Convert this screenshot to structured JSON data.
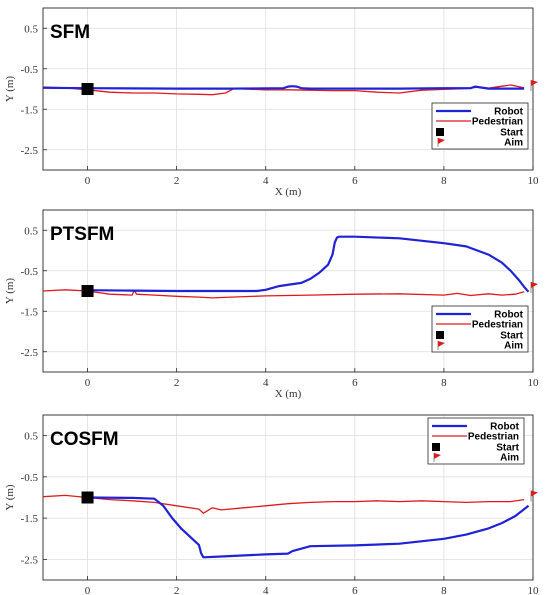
{
  "chart_data": [
    {
      "type": "line",
      "title": "SFM",
      "xlabel": "X (m)",
      "ylabel": "Y (m)",
      "xlim": [
        -1,
        10
      ],
      "ylim": [
        -3,
        1
      ],
      "xticks": [
        0,
        2,
        4,
        6,
        8,
        10
      ],
      "yticks": [
        0.5,
        -0.5,
        -1.5,
        -2.5
      ],
      "grid": true,
      "legend_position": "bottom-right",
      "legend": [
        "Robot",
        "Pedestrian",
        "Start",
        "Aim"
      ],
      "series": [
        {
          "name": "Robot",
          "color": "#1f22d6",
          "x": [
            -1,
            0,
            2,
            3.2,
            4.4,
            4.5,
            4.6,
            4.7,
            4.8,
            5,
            6,
            7,
            8,
            8.6,
            8.7,
            9,
            9.8
          ],
          "y": [
            -0.97,
            -0.98,
            -0.99,
            -0.99,
            -0.98,
            -0.94,
            -0.93,
            -0.94,
            -0.98,
            -0.99,
            -0.99,
            -0.99,
            -0.98,
            -0.98,
            -0.94,
            -0.99,
            -0.99
          ]
        },
        {
          "name": "Pedestrian",
          "color": "#e0191c",
          "x": [
            -1,
            -0.5,
            0,
            0.5,
            1,
            1.5,
            2,
            2.5,
            2.8,
            3.1,
            3.3,
            3.5,
            4,
            4.5,
            5,
            5.5,
            6,
            6.5,
            7,
            7.5,
            8,
            8.5,
            8.8,
            9,
            9.3,
            9.5,
            9.8
          ],
          "y": [
            -0.95,
            -0.97,
            -1.02,
            -1.08,
            -1.1,
            -1.1,
            -1.12,
            -1.13,
            -1.14,
            -1.1,
            -0.98,
            -1,
            -1.02,
            -1.02,
            -1.03,
            -1.04,
            -1.04,
            -1.08,
            -1.1,
            -1.03,
            -1.01,
            -0.99,
            -0.95,
            -0.98,
            -0.93,
            -0.9,
            -0.97
          ]
        }
      ],
      "start": {
        "x": 0,
        "y": -1
      },
      "aim": {
        "x": 10,
        "y": -0.9
      }
    },
    {
      "type": "line",
      "title": "PTSFM",
      "xlabel": "X (m)",
      "ylabel": "Y (m)",
      "xlim": [
        -1,
        10
      ],
      "ylim": [
        -3,
        1
      ],
      "xticks": [
        0,
        2,
        4,
        6,
        8,
        10
      ],
      "yticks": [
        0.5,
        -0.5,
        -1.5,
        -2.5
      ],
      "grid": true,
      "legend_position": "bottom-right",
      "legend": [
        "Robot",
        "Pedestrian",
        "Start",
        "Aim"
      ],
      "series": [
        {
          "name": "Robot",
          "color": "#1f22d6",
          "x": [
            0,
            1,
            2,
            3,
            3.8,
            4,
            4.3,
            4.6,
            4.8,
            5,
            5.2,
            5.4,
            5.5,
            5.55,
            5.6,
            5.65,
            6,
            7,
            8,
            8.5,
            9,
            9.3,
            9.5,
            9.7,
            9.8,
            9.9
          ],
          "y": [
            -0.98,
            -0.99,
            -1.0,
            -1.0,
            -1.0,
            -0.97,
            -0.88,
            -0.83,
            -0.8,
            -0.7,
            -0.55,
            -0.35,
            -0.1,
            0.2,
            0.32,
            0.34,
            0.34,
            0.3,
            0.18,
            0.1,
            -0.1,
            -0.3,
            -0.5,
            -0.75,
            -0.9,
            -1.02
          ]
        },
        {
          "name": "Pedestrian",
          "color": "#e0191c",
          "x": [
            -1,
            -0.5,
            0,
            0.5,
            1,
            1.05,
            1.1,
            1.5,
            2,
            2.5,
            2.8,
            3,
            4,
            5,
            6,
            7,
            8,
            8.3,
            8.6,
            9,
            9.3,
            9.6,
            9.8
          ],
          "y": [
            -1.0,
            -0.97,
            -1.0,
            -1.08,
            -1.1,
            -0.98,
            -1.08,
            -1.1,
            -1.13,
            -1.15,
            -1.17,
            -1.16,
            -1.12,
            -1.1,
            -1.08,
            -1.07,
            -1.1,
            -1.06,
            -1.11,
            -1.07,
            -1.1,
            -1.08,
            -1.02
          ]
        }
      ],
      "start": {
        "x": 0,
        "y": -1
      },
      "aim": {
        "x": 10,
        "y": -0.9
      }
    },
    {
      "type": "line",
      "title": "COSFM",
      "xlabel": "X (m)",
      "ylabel": "Y (m)",
      "xlim": [
        -1,
        10
      ],
      "ylim": [
        -3,
        1
      ],
      "xticks": [
        0,
        2,
        4,
        6,
        8,
        10
      ],
      "yticks": [
        0.5,
        -0.5,
        -1.5,
        -2.5
      ],
      "grid": true,
      "legend_position": "top-right",
      "legend": [
        "Robot",
        "Pedestrian",
        "Start",
        "Aim"
      ],
      "series": [
        {
          "name": "Robot",
          "color": "#1f22d6",
          "x": [
            0,
            1,
            1.5,
            1.7,
            1.9,
            2.1,
            2.3,
            2.5,
            2.55,
            2.6,
            3,
            4,
            4.5,
            4.6,
            5,
            6,
            7,
            8,
            8.5,
            9,
            9.3,
            9.6,
            9.9
          ],
          "y": [
            -1.0,
            -1.01,
            -1.03,
            -1.2,
            -1.5,
            -1.75,
            -1.95,
            -2.15,
            -2.35,
            -2.45,
            -2.43,
            -2.38,
            -2.36,
            -2.3,
            -2.18,
            -2.16,
            -2.12,
            -2.0,
            -1.9,
            -1.75,
            -1.62,
            -1.45,
            -1.2
          ]
        },
        {
          "name": "Pedestrian",
          "color": "#e0191c",
          "x": [
            -1,
            -0.5,
            0,
            0.5,
            1,
            1.5,
            2,
            2.5,
            2.6,
            2.8,
            3,
            3.5,
            4,
            4.5,
            5,
            5.5,
            6,
            6.5,
            7,
            7.5,
            8,
            8.5,
            9,
            9.5,
            9.8
          ],
          "y": [
            -0.98,
            -0.95,
            -1.0,
            -1.05,
            -1.08,
            -1.12,
            -1.2,
            -1.28,
            -1.38,
            -1.25,
            -1.3,
            -1.25,
            -1.2,
            -1.15,
            -1.12,
            -1.1,
            -1.1,
            -1.08,
            -1.1,
            -1.08,
            -1.1,
            -1.12,
            -1.1,
            -1.1,
            -1.05
          ]
        }
      ],
      "start": {
        "x": 0,
        "y": -1
      },
      "aim": {
        "x": 10,
        "y": -0.95
      }
    }
  ]
}
